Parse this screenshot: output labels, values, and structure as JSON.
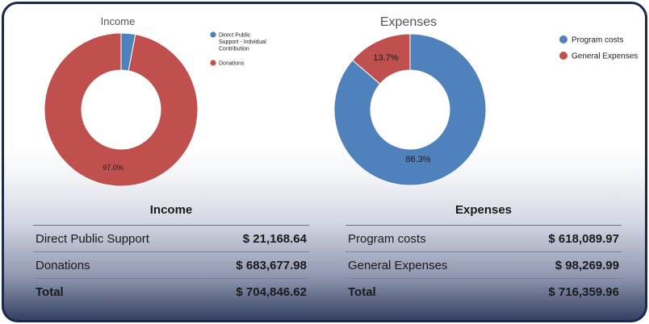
{
  "chart_data": [
    {
      "type": "pie",
      "title": "Income",
      "categories": [
        "Direct Public Support - Indvidual Contribution",
        "Donations"
      ],
      "values": [
        3.0,
        97.0
      ],
      "colors": [
        "#4f81bd",
        "#c0504d"
      ],
      "data_labels": [
        "",
        "97.0%"
      ],
      "donut": true,
      "legend_position": "top-right"
    },
    {
      "type": "pie",
      "title": "Expenses",
      "categories": [
        "Program costs",
        "General Expenses"
      ],
      "values": [
        86.3,
        13.7
      ],
      "colors": [
        "#4f81bd",
        "#c0504d"
      ],
      "data_labels": [
        "86.3%",
        "13.7%"
      ],
      "donut": true,
      "legend_position": "top-right"
    }
  ],
  "income_table": {
    "title": "Income",
    "rows": [
      {
        "label": "Direct Public Support",
        "value": "$ 21,168.64"
      },
      {
        "label": "Donations",
        "value": "$ 683,677.98"
      }
    ],
    "total": {
      "label": "Total",
      "value": "$ 704,846.62"
    }
  },
  "expenses_table": {
    "title": "Expenses",
    "rows": [
      {
        "label": "Program costs",
        "value": "$ 618,089.97"
      },
      {
        "label": "General Expenses",
        "value": "$ 98,269.99"
      }
    ],
    "total": {
      "label": "Total",
      "value": "$ 716,359.96"
    }
  }
}
